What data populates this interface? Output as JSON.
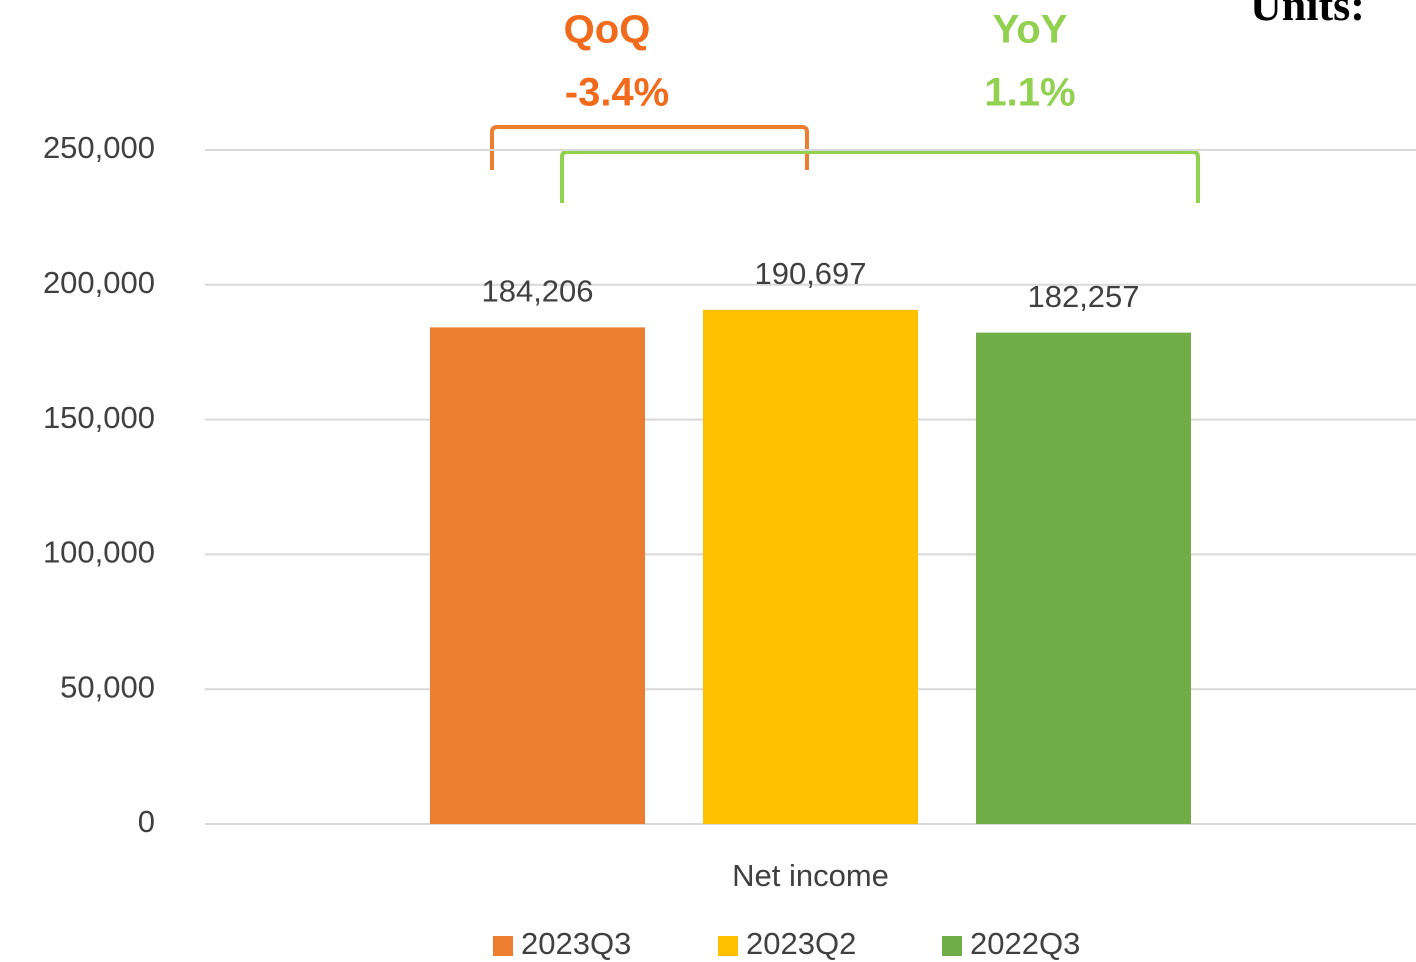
{
  "chart_data": {
    "type": "bar",
    "units_label": "Units:",
    "categories": [
      "Net income"
    ],
    "series": [
      {
        "name": "2023Q3",
        "color": "#ed7d31",
        "values": [
          184206
        ],
        "value_labels": [
          "184,206"
        ]
      },
      {
        "name": "2023Q2",
        "color": "#ffc000",
        "values": [
          190697
        ],
        "value_labels": [
          "190,697"
        ]
      },
      {
        "name": "2022Q3",
        "color": "#70ad47",
        "values": [
          182257
        ],
        "value_labels": [
          "182,257"
        ]
      }
    ],
    "ylim": [
      0,
      250000
    ],
    "yticks": [
      0,
      {
        "value": 50000,
        "label": "50,000"
      },
      {
        "value": 100000,
        "label": "100,000"
      },
      {
        "value": 150000,
        "label": "150,000"
      },
      {
        "value": 200000,
        "label": "200,000"
      },
      {
        "value": 250000,
        "label": "250,000"
      }
    ],
    "grid": true,
    "legend": "bottom",
    "annotations": [
      {
        "title": "QoQ",
        "text": "-3.4%",
        "color": "#f26b1d"
      },
      {
        "title": "YoY",
        "text": "1.1%",
        "color": "#92d050"
      }
    ]
  }
}
